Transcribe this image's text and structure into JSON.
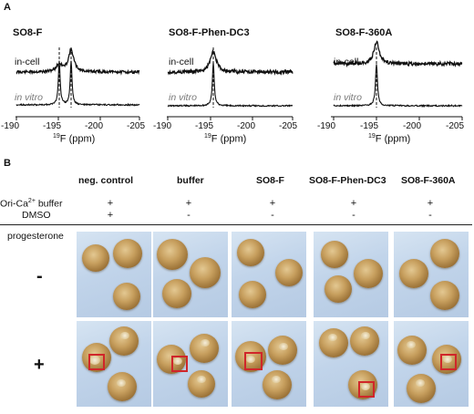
{
  "panel_a": {
    "letter": "A",
    "spectra": [
      {
        "title": "SO8-F",
        "label_incell": "in-cell",
        "label_invitro": "in vitro",
        "ticks": [
          "-190",
          "-195",
          "-200",
          "-205"
        ],
        "xlabel_sup": "19",
        "xlabel_rest": "F (ppm)"
      },
      {
        "title": "SO8-F-Phen-DC3",
        "label_incell": "in-cell",
        "label_invitro": "in vitro",
        "ticks": [
          "-190",
          "-195",
          "-200",
          "-205"
        ],
        "xlabel_sup": "19",
        "xlabel_rest": "F (ppm)"
      },
      {
        "title": "SO8-F-360A",
        "label_incell": "in-cell",
        "label_invitro": "in vitro",
        "ticks": [
          "-190",
          "-195",
          "-200",
          "-205"
        ],
        "xlabel_sup": "19",
        "xlabel_rest": "F (ppm)"
      }
    ]
  },
  "panel_b": {
    "letter": "B",
    "columns": [
      "neg. control",
      "buffer",
      "SO8-F",
      "SO8-F-Phen-DC3",
      "SO8-F-360A"
    ],
    "row_buffer_pre": "Ori-Ca",
    "row_buffer_sup": "2+",
    "row_buffer_post": " buffer",
    "row_dmso": "DMSO",
    "buffer_values": [
      "+",
      "+",
      "+",
      "+",
      "+"
    ],
    "dmso_values": [
      "+",
      "-",
      "-",
      "-",
      "-"
    ],
    "progesterone_label": "progesterone",
    "minus_sign": "-",
    "plus_sign": "+"
  },
  "colors": {
    "spectrum_line": "#111111",
    "invitro_label": "#777777",
    "highlight_box": "#d0262a"
  }
}
